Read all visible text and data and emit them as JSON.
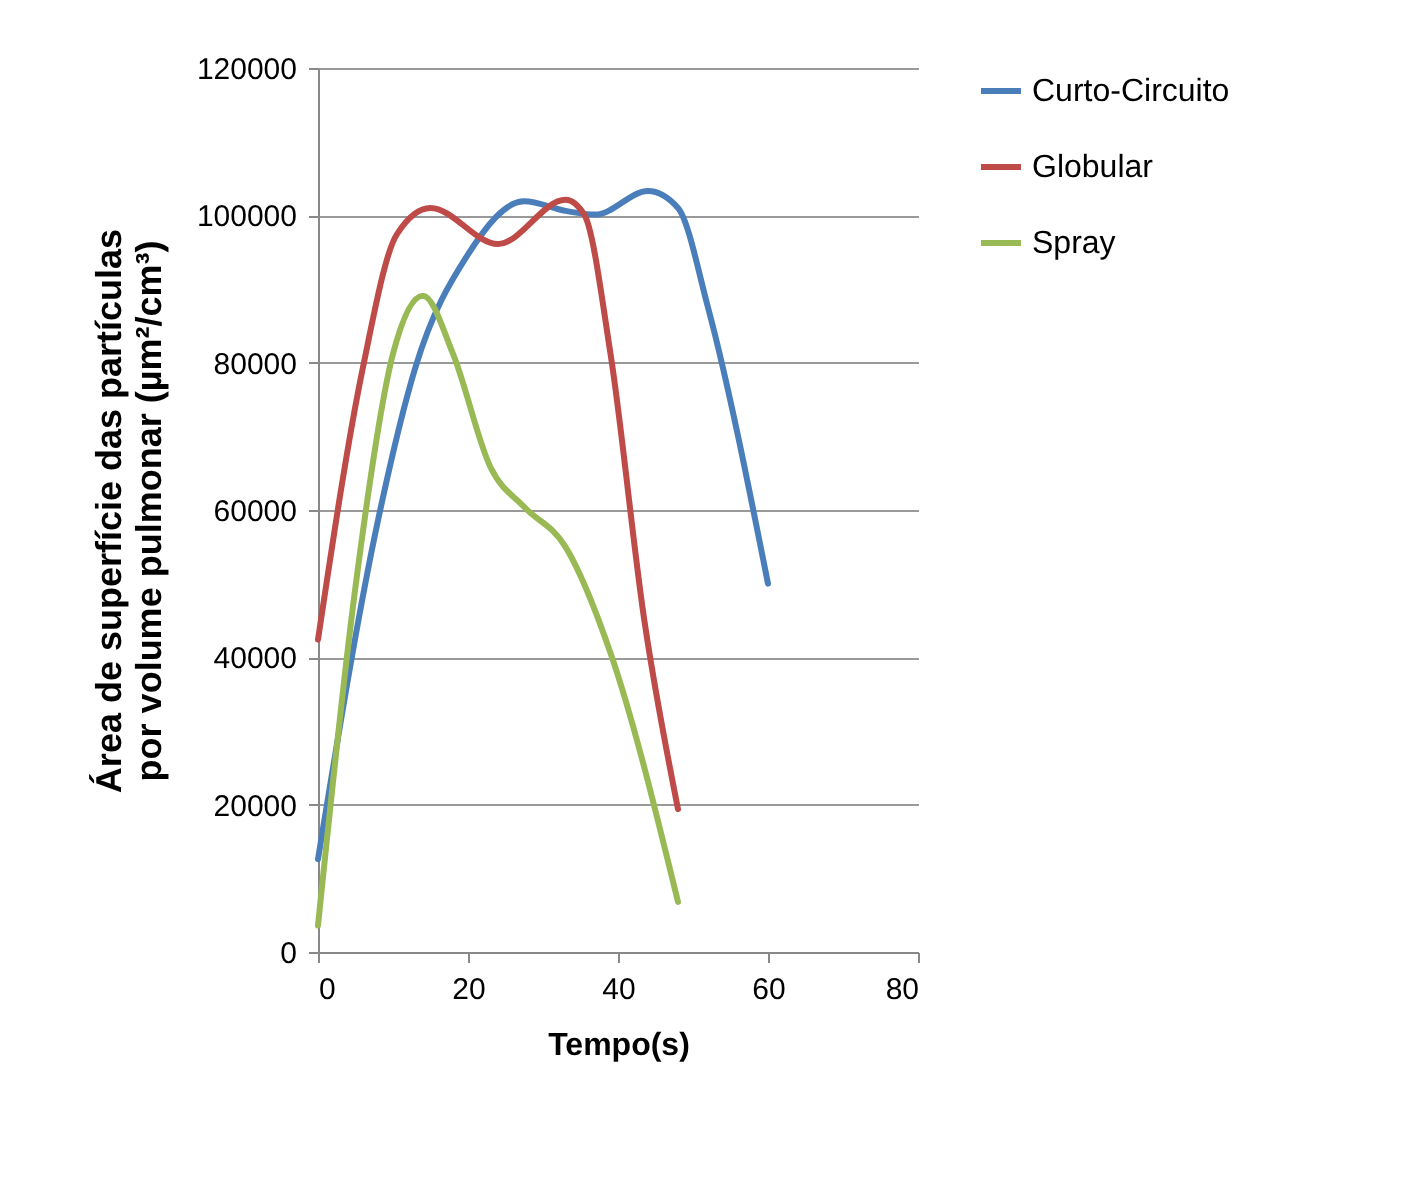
{
  "chart_data": {
    "type": "line",
    "xlabel": "Tempo(s)",
    "ylabel": "Área de superfície das partículas\npor volume pulmonar (µm²/cm³)",
    "xlim": [
      0,
      80
    ],
    "xticks": [
      0,
      20,
      40,
      60,
      80
    ],
    "ylim": [
      0,
      120000
    ],
    "yticks": [
      0,
      20000,
      40000,
      60000,
      80000,
      100000,
      120000
    ],
    "grid": "y",
    "legend": "right",
    "marker": "none",
    "line_style": "solid",
    "series": [
      {
        "name": "Curto-Circuito",
        "color": "#4a7ebb",
        "x": [
          0,
          8,
          13,
          20,
          27.5,
          33,
          37,
          44,
          48,
          52,
          60
        ],
        "values": [
          12600,
          58600,
          79400,
          94700,
          101900,
          100600,
          100100,
          103300,
          101000,
          87500,
          50000
        ]
      },
      {
        "name": "Globular",
        "color": "#be4b48",
        "x": [
          0,
          6,
          10.5,
          15,
          24,
          33,
          35.5,
          39,
          43.5,
          48
        ],
        "values": [
          42400,
          79400,
          97400,
          101000,
          96100,
          102100,
          100100,
          81200,
          45100,
          19400
        ]
      },
      {
        "name": "Spray",
        "color": "#98b954",
        "x": [
          0,
          5,
          10,
          14,
          18,
          23,
          27.5,
          33,
          39,
          48
        ],
        "values": [
          3600,
          49600,
          81200,
          89100,
          81200,
          65800,
          60400,
          55000,
          40600,
          6800
        ]
      }
    ]
  }
}
